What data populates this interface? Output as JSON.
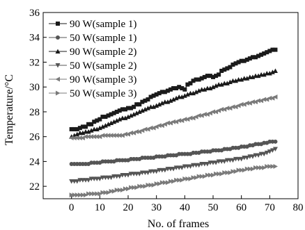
{
  "chart_data": {
    "type": "scatter",
    "xlabel": "No. of frames",
    "ylabel": "Temperature/°C",
    "xlim": [
      -10,
      80
    ],
    "ylim": [
      21,
      36
    ],
    "xticks": [
      0,
      10,
      20,
      30,
      40,
      50,
      60,
      70,
      80
    ],
    "yticks": [
      22,
      24,
      26,
      28,
      30,
      32,
      34,
      36
    ],
    "legend_position": "top-left",
    "grid": false,
    "x": [
      0,
      1,
      2,
      3,
      4,
      5,
      6,
      7,
      8,
      9,
      10,
      11,
      12,
      13,
      14,
      15,
      16,
      17,
      18,
      19,
      20,
      21,
      22,
      23,
      24,
      25,
      26,
      27,
      28,
      29,
      30,
      31,
      32,
      33,
      34,
      35,
      36,
      37,
      38,
      39,
      40,
      41,
      42,
      43,
      44,
      45,
      46,
      47,
      48,
      49,
      50,
      51,
      52,
      53,
      54,
      55,
      56,
      57,
      58,
      59,
      60,
      61,
      62,
      63,
      64,
      65,
      66,
      67,
      68,
      69,
      70,
      71,
      72
    ],
    "series": [
      {
        "name": "90 W(sample 1)",
        "marker": "square",
        "color": "#1a1a1a",
        "values": [
          26.6,
          26.6,
          26.6,
          26.7,
          26.8,
          26.8,
          27.0,
          27.0,
          27.2,
          27.3,
          27.4,
          27.6,
          27.6,
          27.7,
          27.8,
          27.9,
          28.0,
          28.1,
          28.2,
          28.2,
          28.3,
          28.3,
          28.4,
          28.6,
          28.6,
          28.8,
          28.9,
          29.0,
          29.2,
          29.3,
          29.4,
          29.5,
          29.6,
          29.6,
          29.7,
          29.8,
          29.9,
          29.9,
          30.0,
          29.9,
          29.8,
          30.2,
          30.3,
          30.5,
          30.6,
          30.6,
          30.7,
          30.8,
          30.9,
          30.9,
          30.8,
          30.9,
          31.0,
          31.3,
          31.4,
          31.5,
          31.6,
          31.8,
          31.9,
          32.0,
          32.1,
          32.1,
          32.2,
          32.3,
          32.4,
          32.4,
          32.5,
          32.6,
          32.7,
          32.8,
          32.9,
          33.0,
          33.0
        ]
      },
      {
        "name": "50 W(sample 1)",
        "marker": "circle",
        "color": "#555555",
        "values": [
          23.8,
          23.8,
          23.8,
          23.8,
          23.8,
          23.8,
          23.8,
          23.9,
          23.9,
          23.9,
          23.9,
          24.0,
          24.0,
          24.0,
          24.0,
          24.0,
          24.1,
          24.1,
          24.1,
          24.1,
          24.1,
          24.2,
          24.2,
          24.2,
          24.2,
          24.3,
          24.3,
          24.3,
          24.3,
          24.3,
          24.4,
          24.4,
          24.4,
          24.4,
          24.5,
          24.5,
          24.5,
          24.5,
          24.6,
          24.6,
          24.6,
          24.6,
          24.6,
          24.7,
          24.7,
          24.7,
          24.8,
          24.8,
          24.8,
          24.8,
          24.9,
          24.9,
          24.9,
          24.9,
          25.0,
          25.0,
          25.0,
          25.1,
          25.1,
          25.1,
          25.2,
          25.2,
          25.2,
          25.3,
          25.3,
          25.4,
          25.4,
          25.4,
          25.5,
          25.5,
          25.6,
          25.6,
          25.6
        ]
      },
      {
        "name": "90 W(sample 2)",
        "marker": "triangle-up",
        "color": "#1a1a1a",
        "values": [
          26.0,
          26.1,
          26.2,
          26.3,
          26.3,
          26.4,
          26.4,
          26.5,
          26.6,
          26.6,
          26.7,
          26.8,
          26.9,
          27.0,
          27.1,
          27.2,
          27.3,
          27.4,
          27.5,
          27.5,
          27.6,
          27.7,
          27.8,
          27.9,
          28.0,
          28.1,
          28.2,
          28.3,
          28.4,
          28.4,
          28.5,
          28.6,
          28.7,
          28.8,
          28.8,
          28.9,
          29.0,
          29.1,
          29.2,
          29.2,
          29.3,
          29.4,
          29.5,
          29.5,
          29.6,
          29.7,
          29.8,
          29.8,
          29.9,
          29.9,
          30.0,
          30.1,
          30.2,
          30.2,
          30.3,
          30.3,
          30.4,
          30.5,
          30.5,
          30.6,
          30.6,
          30.7,
          30.7,
          30.8,
          30.8,
          30.9,
          30.9,
          31.0,
          31.0,
          31.1,
          31.1,
          31.2,
          31.3
        ]
      },
      {
        "name": "50 W(sample 2)",
        "marker": "triangle-down",
        "color": "#555555",
        "values": [
          22.4,
          22.4,
          22.4,
          22.5,
          22.5,
          22.5,
          22.5,
          22.6,
          22.6,
          22.6,
          22.6,
          22.7,
          22.7,
          22.7,
          22.7,
          22.8,
          22.8,
          22.8,
          22.9,
          22.9,
          22.9,
          23.0,
          23.0,
          23.0,
          23.0,
          23.1,
          23.1,
          23.1,
          23.2,
          23.2,
          23.2,
          23.3,
          23.3,
          23.3,
          23.4,
          23.4,
          23.4,
          23.5,
          23.5,
          23.5,
          23.6,
          23.6,
          23.6,
          23.7,
          23.7,
          23.7,
          23.8,
          23.8,
          23.8,
          23.9,
          23.9,
          23.9,
          24.0,
          24.0,
          24.0,
          24.1,
          24.1,
          24.1,
          24.2,
          24.2,
          24.2,
          24.3,
          24.3,
          24.4,
          24.4,
          24.5,
          24.5,
          24.6,
          24.6,
          24.7,
          24.8,
          24.9,
          25.0
        ]
      },
      {
        "name": "90 W(sample 3)",
        "marker": "triangle-left",
        "color": "#7a7a7a",
        "values": [
          25.9,
          25.9,
          25.9,
          25.9,
          25.9,
          26.0,
          26.0,
          26.0,
          26.0,
          26.0,
          26.0,
          26.1,
          26.1,
          26.1,
          26.1,
          26.1,
          26.1,
          26.1,
          26.1,
          26.2,
          26.2,
          26.3,
          26.3,
          26.4,
          26.4,
          26.5,
          26.6,
          26.6,
          26.7,
          26.7,
          26.8,
          26.9,
          26.9,
          27.0,
          27.1,
          27.1,
          27.2,
          27.2,
          27.3,
          27.3,
          27.4,
          27.4,
          27.5,
          27.5,
          27.6,
          27.7,
          27.7,
          27.8,
          27.8,
          27.9,
          28.0,
          28.0,
          28.1,
          28.2,
          28.2,
          28.3,
          28.3,
          28.4,
          28.4,
          28.5,
          28.6,
          28.6,
          28.7,
          28.7,
          28.8,
          28.8,
          28.9,
          28.9,
          29.0,
          29.0,
          29.1,
          29.1,
          29.2
        ]
      },
      {
        "name": "50 W(sample 3)",
        "marker": "triangle-right",
        "color": "#7a7a7a",
        "values": [
          21.3,
          21.3,
          21.3,
          21.3,
          21.3,
          21.3,
          21.4,
          21.4,
          21.4,
          21.4,
          21.4,
          21.5,
          21.5,
          21.5,
          21.6,
          21.6,
          21.7,
          21.7,
          21.7,
          21.8,
          21.8,
          21.9,
          21.9,
          21.9,
          22.0,
          22.0,
          22.0,
          22.1,
          22.1,
          22.1,
          22.2,
          22.2,
          22.3,
          22.3,
          22.3,
          22.4,
          22.4,
          22.5,
          22.5,
          22.5,
          22.6,
          22.6,
          22.6,
          22.7,
          22.7,
          22.8,
          22.8,
          22.8,
          22.9,
          22.9,
          22.9,
          23.0,
          23.0,
          23.0,
          23.1,
          23.1,
          23.1,
          23.2,
          23.2,
          23.3,
          23.3,
          23.3,
          23.4,
          23.4,
          23.4,
          23.5,
          23.5,
          23.5,
          23.5,
          23.6,
          23.6,
          23.6,
          23.6
        ]
      }
    ]
  }
}
